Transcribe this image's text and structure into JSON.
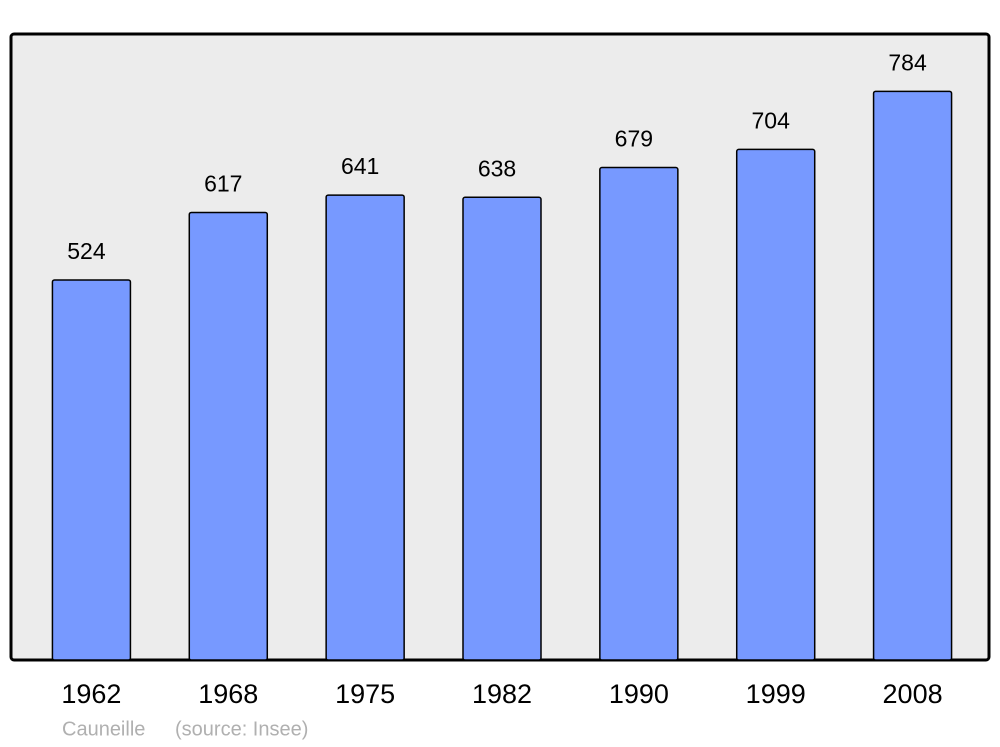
{
  "chart_data": {
    "type": "bar",
    "categories": [
      "1962",
      "1968",
      "1975",
      "1982",
      "1990",
      "1999",
      "2008"
    ],
    "values": [
      524,
      617,
      641,
      638,
      679,
      704,
      784
    ],
    "color": "#7799ff",
    "subtitle": "Cauneille",
    "source": "(source: Insee)"
  }
}
